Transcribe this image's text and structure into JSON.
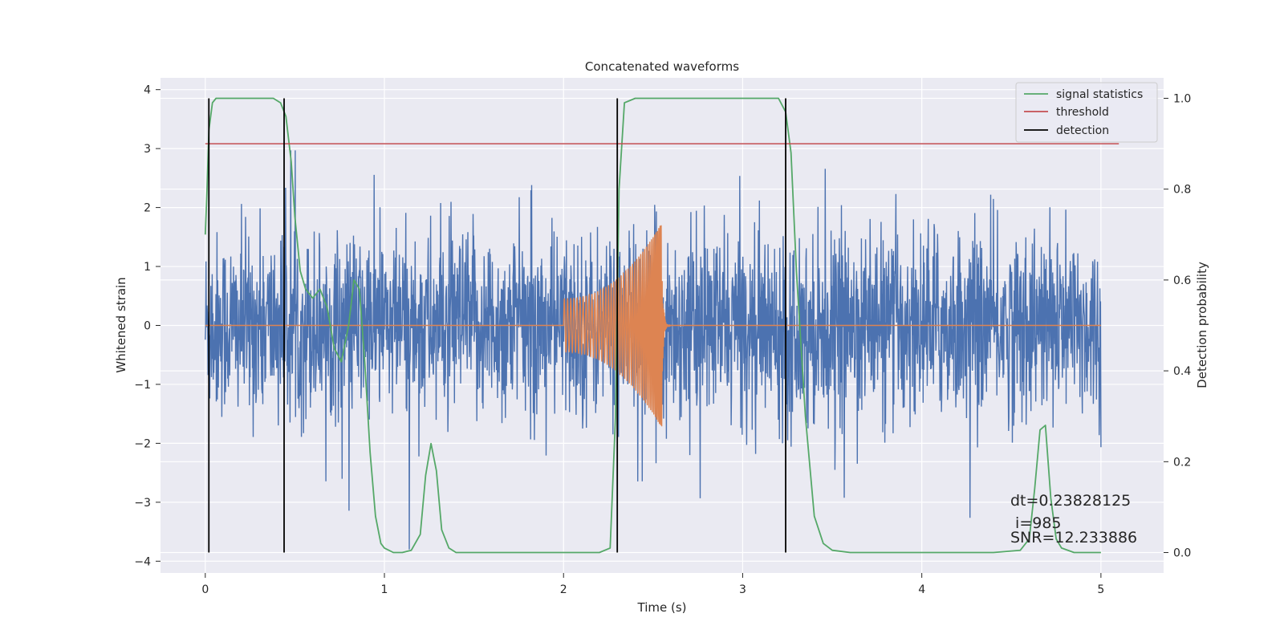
{
  "chart_data": {
    "type": "line",
    "title": "Concatenated waveforms",
    "xlabel": "Time (s)",
    "ylabel_left": "Whitened strain",
    "ylabel_right": "Detection probability",
    "xlim": [
      -0.25,
      5.35
    ],
    "ylim_left": [
      -4.2,
      4.2
    ],
    "ylim_right": [
      -0.045,
      1.045
    ],
    "xticks": [
      0,
      1,
      2,
      3,
      4,
      5
    ],
    "yticks_left": [
      -4,
      -3,
      -2,
      -1,
      0,
      1,
      2,
      3,
      4
    ],
    "yticks_right": [
      0.0,
      0.2,
      0.4,
      0.6,
      0.8,
      1.0
    ],
    "xtick_labels": [
      "0",
      "1",
      "2",
      "3",
      "4",
      "5"
    ],
    "ytick_labels_left": [
      "−4",
      "−3",
      "−2",
      "−1",
      "0",
      "1",
      "2",
      "3",
      "4"
    ],
    "ytick_labels_right": [
      "0.0",
      "0.2",
      "0.4",
      "0.6",
      "0.8",
      "1.0"
    ],
    "grid": true,
    "legend_position": "top-right",
    "legend": [
      {
        "name": "signal statistics",
        "color": "#55a868"
      },
      {
        "name": "threshold",
        "color": "#c44e52"
      },
      {
        "name": "detection",
        "color": "#000000"
      }
    ],
    "series": [
      {
        "name": "whitened strain",
        "axis": "left",
        "color": "#4c72b0",
        "x_range": [
          0,
          5
        ],
        "envelope_peak_max": 3.85,
        "envelope_peak_min": -3.8
      },
      {
        "name": "injected waveform",
        "axis": "left",
        "color": "#dd8452",
        "x_range": [
          2.0,
          2.55
        ],
        "amplitude_start": 0.45,
        "amplitude_end": 1.75
      },
      {
        "name": "signal statistics",
        "axis": "right",
        "color": "#55a868",
        "x": [
          0,
          0.01,
          0.02,
          0.04,
          0.06,
          0.1,
          0.2,
          0.3,
          0.38,
          0.42,
          0.45,
          0.48,
          0.5,
          0.53,
          0.56,
          0.6,
          0.64,
          0.68,
          0.72,
          0.76,
          0.8,
          0.83,
          0.86,
          0.89,
          0.92,
          0.95,
          0.98,
          1.0,
          1.05,
          1.1,
          1.15,
          1.2,
          1.23,
          1.26,
          1.29,
          1.32,
          1.36,
          1.4,
          1.5,
          2.0,
          2.2,
          2.26,
          2.29,
          2.31,
          2.34,
          2.4,
          3.0,
          3.1,
          3.2,
          3.24,
          3.27,
          3.3,
          3.35,
          3.4,
          3.45,
          3.5,
          3.6,
          3.8,
          4.4,
          4.55,
          4.6,
          4.63,
          4.66,
          4.69,
          4.72,
          4.75,
          4.78,
          4.85,
          5.0
        ],
        "y": [
          0.7,
          0.8,
          0.93,
          0.99,
          1.0,
          1.0,
          1.0,
          1.0,
          1.0,
          0.99,
          0.96,
          0.86,
          0.74,
          0.62,
          0.58,
          0.56,
          0.58,
          0.54,
          0.45,
          0.42,
          0.5,
          0.6,
          0.58,
          0.42,
          0.22,
          0.08,
          0.02,
          0.01,
          0.0,
          0.0,
          0.005,
          0.04,
          0.17,
          0.24,
          0.18,
          0.05,
          0.01,
          0.0,
          0.0,
          0.0,
          0.0,
          0.01,
          0.3,
          0.8,
          0.99,
          1.0,
          1.0,
          1.0,
          1.0,
          0.97,
          0.88,
          0.62,
          0.3,
          0.08,
          0.02,
          0.005,
          0.0,
          0.0,
          0.0,
          0.005,
          0.03,
          0.14,
          0.27,
          0.28,
          0.12,
          0.03,
          0.01,
          0.0,
          0.0
        ]
      },
      {
        "name": "threshold",
        "axis": "right",
        "color": "#c44e52",
        "x": [
          0,
          5.1
        ],
        "y": [
          0.9,
          0.9
        ]
      },
      {
        "name": "detection",
        "axis": "right",
        "color": "#000000",
        "x": [
          0.02,
          0.44,
          2.3,
          3.24
        ],
        "y_range": [
          0,
          1
        ]
      }
    ],
    "annotations": [
      "dt=0.23828125",
      " i=985",
      "SNR=12.233886"
    ]
  }
}
